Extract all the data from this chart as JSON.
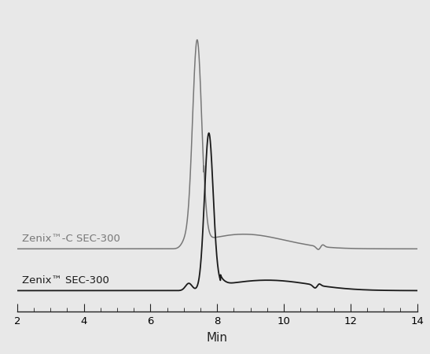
{
  "xlabel": "Min",
  "xlim": [
    2,
    14
  ],
  "background_color": "#e8e8e8",
  "line1_color": "#777777",
  "line2_color": "#1a1a1a",
  "label1": "Zenix™-C SEC-300",
  "label2": "Zenix™ SEC-300",
  "label1_fontsize": 9.5,
  "label2_fontsize": 9.5,
  "xlabel_fontsize": 11,
  "tick_label_fontsize": 9.5
}
